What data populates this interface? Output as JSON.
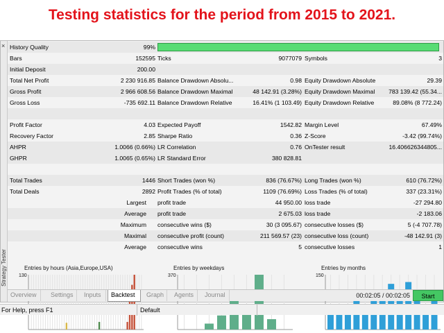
{
  "headline": "Testing statistics for the period from 2015 to 2021.",
  "side_panel": {
    "close": "×",
    "label": "Strategy Tester"
  },
  "stats": {
    "history_quality": {
      "label": "History Quality",
      "value": "99%",
      "fill": 0.99
    },
    "rows": [
      {
        "c1": "Bars",
        "v1": "152595",
        "c2": "Ticks",
        "v2": "9077079",
        "c3": "Symbols",
        "v3": "3"
      },
      {
        "c1": "Initial Deposit",
        "v1": "200.00",
        "c2": "",
        "v2": "",
        "c3": "",
        "v3": ""
      },
      {
        "c1": "Total Net Profit",
        "v1": "2 230 916.85",
        "c2": "Balance Drawdown Absolu...",
        "v2": "0.98",
        "c3": "Equity Drawdown Absolute",
        "v3": "29.39"
      },
      {
        "c1": "Gross Profit",
        "v1": "2 966 608.56",
        "c2": "Balance Drawdown Maximal",
        "v2": "48 142.91 (3.28%)",
        "c3": "Equity Drawdown Maximal",
        "v3": "783 139.42 (55.34..."
      },
      {
        "c1": "Gross Loss",
        "v1": "-735 692.11",
        "c2": "Balance Drawdown Relative",
        "v2": "16.41% (1 103.49)",
        "c3": "Equity Drawdown Relative",
        "v3": "89.08% (8 772.24)"
      },
      {
        "c1": "",
        "v1": "",
        "c2": "",
        "v2": "",
        "c3": "",
        "v3": ""
      },
      {
        "c1": "Profit Factor",
        "v1": "4.03",
        "c2": "Expected Payoff",
        "v2": "1542.82",
        "c3": "Margin Level",
        "v3": "67.49%"
      },
      {
        "c1": "Recovery Factor",
        "v1": "2.85",
        "c2": "Sharpe Ratio",
        "v2": "0.36",
        "c3": "Z-Score",
        "v3": "-3.42 (99.74%)"
      },
      {
        "c1": "AHPR",
        "v1": "1.0066 (0.66%)",
        "c2": "LR Correlation",
        "v2": "0.76",
        "c3": "OnTester result",
        "v3": "16.406626344805..."
      },
      {
        "c1": "GHPR",
        "v1": "1.0065 (0.65%)",
        "c2": "LR Standard Error",
        "v2": "380 828.81",
        "c3": "",
        "v3": ""
      },
      {
        "c1": "",
        "v1": "",
        "c2": "",
        "v2": "",
        "c3": "",
        "v3": ""
      },
      {
        "c1": "Total Trades",
        "v1": "1446",
        "c2": "Short Trades (won %)",
        "v2": "836 (76.67%)",
        "c3": "Long Trades (won %)",
        "v3": "610 (76.72%)"
      },
      {
        "c1": "Total Deals",
        "v1": "2892",
        "c2": "Profit Trades (% of total)",
        "v2": "1109 (76.69%)",
        "c3": "Loss Trades (% of total)",
        "v3": "337 (23.31%)"
      },
      {
        "c1": "",
        "v1": "Largest",
        "c2": "profit trade",
        "v2": "44 950.00",
        "c3": "loss trade",
        "v3": "-27 294.80"
      },
      {
        "c1": "",
        "v1": "Average",
        "c2": "profit trade",
        "v2": "2 675.03",
        "c3": "loss trade",
        "v3": "-2 183.06"
      },
      {
        "c1": "",
        "v1": "Maximum",
        "c2": "consecutive wins ($)",
        "v2": "30 (3 095.67)",
        "c3": "consecutive losses ($)",
        "v3": "5 (-4 707.78)"
      },
      {
        "c1": "",
        "v1": "Maximal",
        "c2": "consecutive profit (count)",
        "v2": "211 569.57 (23)",
        "c3": "consecutive loss (count)",
        "v3": "-48 142.91 (3)"
      },
      {
        "c1": "",
        "v1": "Average",
        "c2": "consecutive wins",
        "v2": "5",
        "c3": "consecutive losses",
        "v3": "1"
      }
    ]
  },
  "chart_data": [
    {
      "type": "bar",
      "title": "Entries by hours (Asia,Europe,USA)",
      "ylim": [
        0,
        130
      ],
      "ymax_label": "130",
      "values": [
        0,
        0,
        0,
        0,
        0,
        0,
        0,
        0,
        0,
        0,
        0,
        0,
        0,
        0,
        0,
        16,
        0,
        0,
        0,
        0,
        0,
        0,
        0,
        0,
        0,
        0,
        0,
        0,
        0,
        18,
        0,
        0,
        0,
        0,
        0,
        0,
        0,
        0,
        0,
        0,
        0,
        18,
        70,
        106,
        130,
        0,
        0,
        0
      ],
      "colors_by_index": {
        "15": "#d8b84a",
        "29": "#4e8a4e",
        "41": "#c4523a",
        "42": "#c4523a",
        "43": "#c4523a",
        "44": "#c4523a"
      },
      "default_color": "#c4523a"
    },
    {
      "type": "bar",
      "title": "Entries by weekdays",
      "ylim": [
        0,
        370
      ],
      "ymax_label": "370",
      "values": [
        0,
        0,
        40,
        95,
        215,
        160,
        370,
        70,
        0
      ],
      "default_color": "#5fae8a"
    },
    {
      "type": "bar",
      "title": "Entries by months",
      "ylim": [
        0,
        150
      ],
      "ymax_label": "150",
      "values": [
        55,
        55,
        55,
        85,
        60,
        95,
        90,
        125,
        95,
        130,
        85,
        60,
        85
      ],
      "default_color": "#2f9fd8"
    }
  ],
  "tabs": [
    "Overview",
    "Settings",
    "Inputs",
    "Backtest",
    "Graph",
    "Agents",
    "Journal"
  ],
  "active_tab": "Backtest",
  "timer": "00:02:05 / 00:02:05",
  "start_label": "Start",
  "status": {
    "help": "For Help, press F1",
    "profile": "Default"
  }
}
